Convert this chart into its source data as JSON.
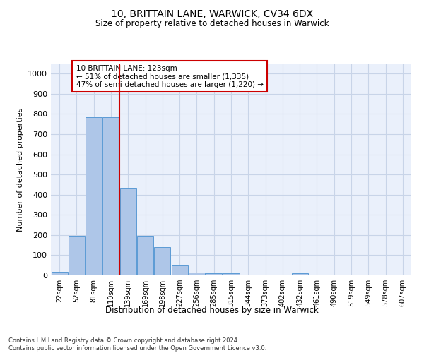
{
  "title": "10, BRITTAIN LANE, WARWICK, CV34 6DX",
  "subtitle": "Size of property relative to detached houses in Warwick",
  "xlabel": "Distribution of detached houses by size in Warwick",
  "ylabel": "Number of detached properties",
  "categories": [
    "22sqm",
    "52sqm",
    "81sqm",
    "110sqm",
    "139sqm",
    "169sqm",
    "198sqm",
    "227sqm",
    "256sqm",
    "285sqm",
    "315sqm",
    "344sqm",
    "373sqm",
    "402sqm",
    "432sqm",
    "461sqm",
    "490sqm",
    "519sqm",
    "549sqm",
    "578sqm",
    "607sqm"
  ],
  "values": [
    18,
    195,
    785,
    785,
    435,
    195,
    140,
    50,
    15,
    12,
    12,
    0,
    0,
    0,
    10,
    0,
    0,
    0,
    0,
    0,
    0
  ],
  "bar_color": "#aec6e8",
  "bar_edge_color": "#5b9bd5",
  "grid_color": "#c8d4e8",
  "vline_x_index": 3.5,
  "vline_color": "#cc0000",
  "ylim": [
    0,
    1050
  ],
  "yticks": [
    0,
    100,
    200,
    300,
    400,
    500,
    600,
    700,
    800,
    900,
    1000
  ],
  "annotation_text": "10 BRITTAIN LANE: 123sqm\n← 51% of detached houses are smaller (1,335)\n47% of semi-detached houses are larger (1,220) →",
  "annotation_box_color": "#ffffff",
  "annotation_box_edgecolor": "#cc0000",
  "footer_text": "Contains HM Land Registry data © Crown copyright and database right 2024.\nContains public sector information licensed under the Open Government Licence v3.0.",
  "background_color": "#ffffff",
  "plot_bg_color": "#eaf0fb"
}
